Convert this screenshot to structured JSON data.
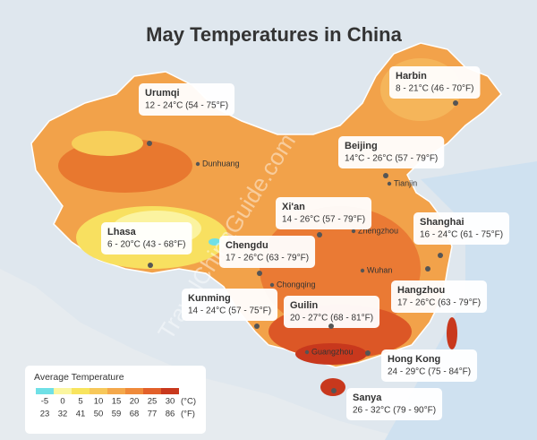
{
  "title": "May Temperatures in China",
  "watermark": "TravelChinaGuide.com",
  "cities": [
    {
      "name": "Urumqi",
      "range": "12 - 24°C (54 - 75°F)"
    },
    {
      "name": "Harbin",
      "range": "8 - 21°C (46 - 70°F)"
    },
    {
      "name": "Beijing",
      "range": "14°C - 26°C (57 - 79°F)"
    },
    {
      "name": "Xi'an",
      "range": "14 - 26°C (57 - 79°F)"
    },
    {
      "name": "Lhasa",
      "range": "6 - 20°C (43 - 68°F)"
    },
    {
      "name": "Chengdu",
      "range": "17 - 26°C (63 - 79°F)"
    },
    {
      "name": "Shanghai",
      "range": "16 - 24°C (61 - 75°F)"
    },
    {
      "name": "Hangzhou",
      "range": "17 - 26°C (63 - 79°F)"
    },
    {
      "name": "Kunming",
      "range": "14 - 24°C (57 - 75°F)"
    },
    {
      "name": "Guilin",
      "range": "20 - 27°C (68 - 81°F)"
    },
    {
      "name": "Hong Kong",
      "range": "24 - 29°C (75 - 84°F)"
    },
    {
      "name": "Sanya",
      "range": "26 - 32°C (79 - 90°F)"
    }
  ],
  "places": [
    "Dunhuang",
    "Tianjin",
    "Zhengzhou",
    "Wuhan",
    "Chongqing",
    "Guangzhou"
  ],
  "legend": {
    "title": "Average Temperature",
    "celsius": [
      -5,
      0,
      5,
      10,
      15,
      20,
      25,
      30
    ],
    "fahrenheit": [
      23,
      32,
      41,
      50,
      59,
      68,
      77,
      86
    ],
    "celsius_unit": "(°C)",
    "fahrenheit_unit": "(°F)",
    "colors": [
      "#6fe0e6",
      "#fbf6a0",
      "#f8e45e",
      "#f7c85a",
      "#f4a84b",
      "#ef8a3a",
      "#e2602a",
      "#c8381d"
    ]
  }
}
